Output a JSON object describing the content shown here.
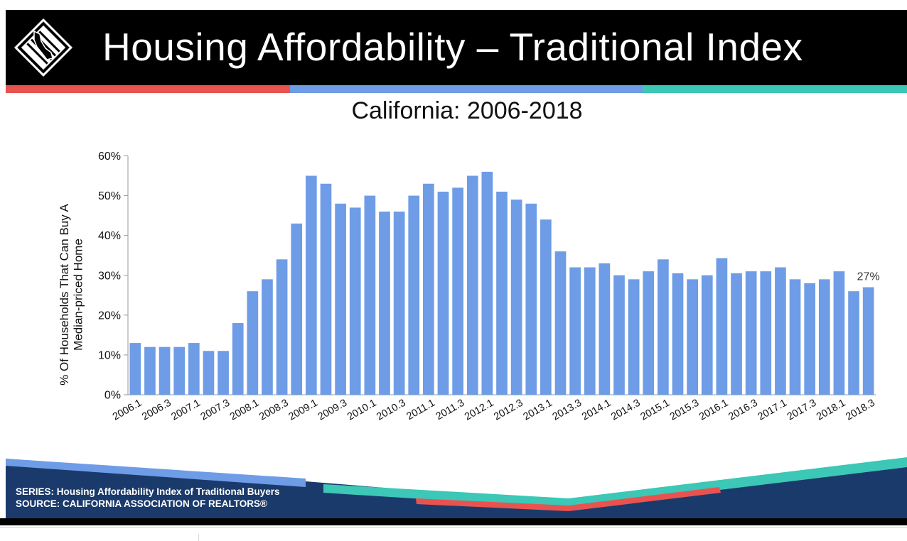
{
  "header": {
    "title": "Housing Affordability – Traditional Index",
    "logo_icon": "california-logo-icon"
  },
  "colors": {
    "bar": "#6e9ce6",
    "red": "#e9534f",
    "blue": "#6e9ce6",
    "teal": "#3cc7b6",
    "navy": "#1a3a6b"
  },
  "chart_data": {
    "type": "bar",
    "title": "California: 2006-2018",
    "ylabel": "% Of Households That Can Buy A Median-priced Home",
    "xlabel": "",
    "ylim": [
      0,
      60
    ],
    "yticks": [
      "0%",
      "10%",
      "20%",
      "30%",
      "40%",
      "50%",
      "60%"
    ],
    "categories": [
      "2006.1",
      "2006.2",
      "2006.3",
      "2006.4",
      "2007.1",
      "2007.2",
      "2007.3",
      "2007.4",
      "2008.1",
      "2008.2",
      "2008.3",
      "2008.4",
      "2009.1",
      "2009.2",
      "2009.3",
      "2009.4",
      "2010.1",
      "2010.2",
      "2010.3",
      "2010.4",
      "2011.1",
      "2011.2",
      "2011.3",
      "2011.4",
      "2012.1",
      "2012.2",
      "2012.3",
      "2012.4",
      "2013.1",
      "2013.2",
      "2013.3",
      "2013.4",
      "2014.1",
      "2014.2",
      "2014.3",
      "2014.4",
      "2015.1",
      "2015.2",
      "2015.3",
      "2015.4",
      "2016.1",
      "2016.2",
      "2016.3",
      "2016.4",
      "2017.1",
      "2017.2",
      "2017.3",
      "2017.4",
      "2018.1",
      "2018.2",
      "2018.3"
    ],
    "tick_labels": [
      "2006.1",
      "2006.3",
      "2007.1",
      "2007.3",
      "2008.1",
      "2008.3",
      "2009.1",
      "2009.3",
      "2010.1",
      "2010.3",
      "2011.1",
      "2011.3",
      "2012.1",
      "2012.3",
      "2013.1",
      "2013.3",
      "2014.1",
      "2014.3",
      "2015.1",
      "2015.3",
      "2016.1",
      "2016.3",
      "2017.1",
      "2017.3",
      "2018.1",
      "2018.3"
    ],
    "values": [
      13,
      12,
      12,
      12,
      13,
      11,
      11,
      18,
      26,
      29,
      34,
      43,
      55,
      53,
      48,
      47,
      50,
      46,
      46,
      50,
      53,
      51,
      52,
      55,
      56,
      51,
      49,
      48,
      44,
      36,
      32,
      32,
      33,
      30,
      29,
      31,
      34,
      30.5,
      29,
      30,
      34.3,
      30.5,
      31,
      31,
      32,
      29,
      28,
      29,
      31,
      26,
      27
    ],
    "annotation": "27%",
    "grid": false
  },
  "footer": {
    "series": "SERIES: Housing Affordability Index of Traditional Buyers",
    "source": "SOURCE:  CALIFORNIA ASSOCIATION OF REALTORS®"
  }
}
